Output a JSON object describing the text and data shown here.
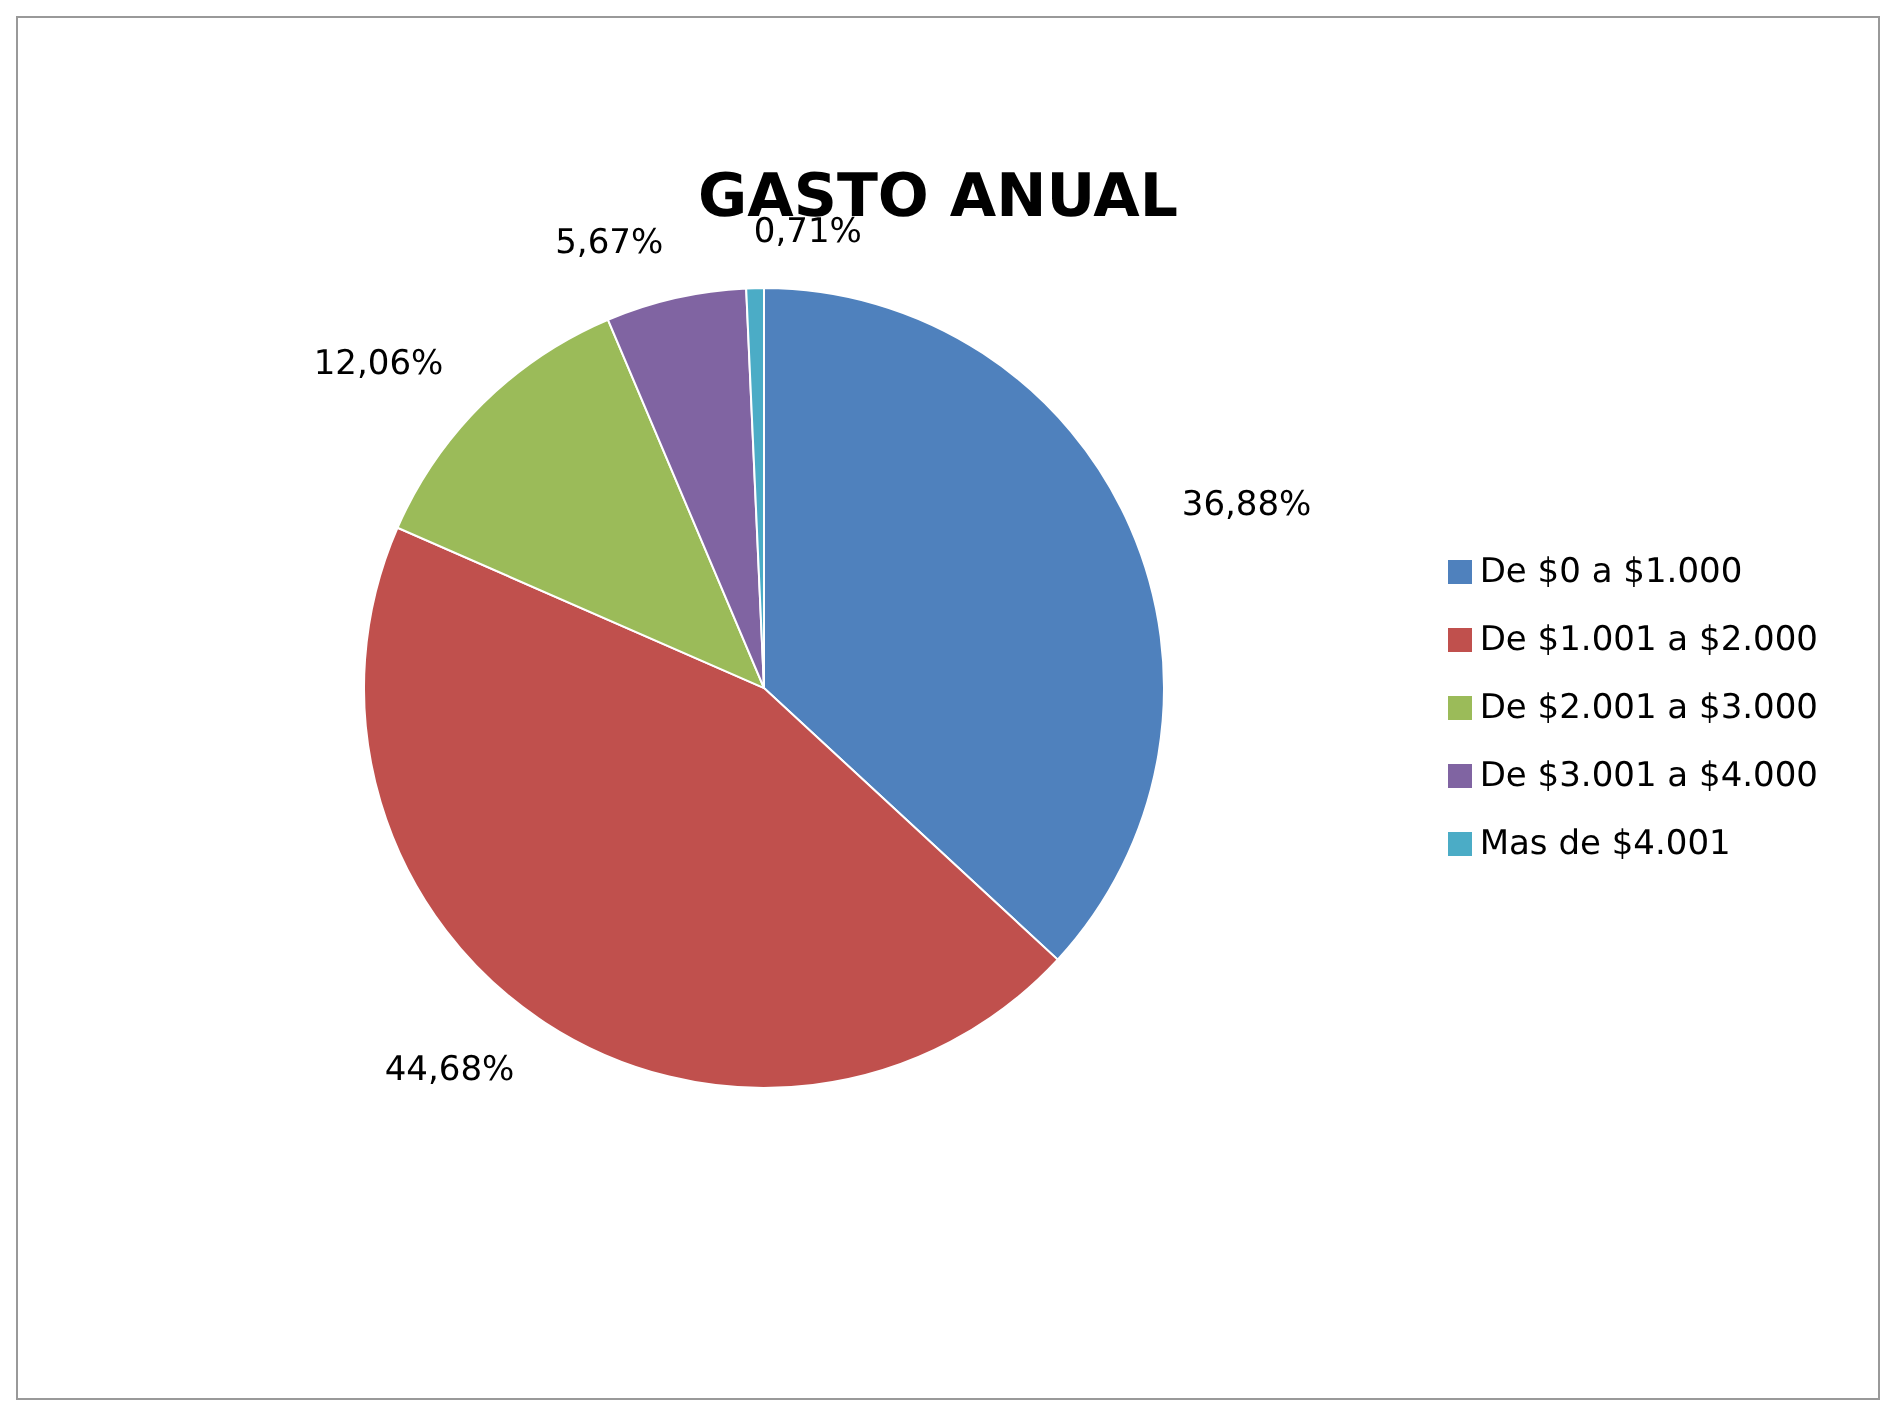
{
  "chart_data": {
    "type": "pie",
    "title": "GASTO ANUAL",
    "categories": [
      "De $0 a $1.000",
      "De $1.001 a $2.000",
      "De $2.001 a $3.000",
      "De $3.001 a $4.000",
      "Mas de $4.001"
    ],
    "values": [
      36.88,
      44.68,
      12.06,
      5.67,
      0.71
    ],
    "value_labels": [
      "36,88%",
      "44,68%",
      "12,06%",
      "5,67%",
      "0,71%"
    ],
    "colors": [
      "#4f81bd",
      "#c0504d",
      "#9bbb59",
      "#8064a2",
      "#4bacc6"
    ],
    "legend": "right"
  }
}
